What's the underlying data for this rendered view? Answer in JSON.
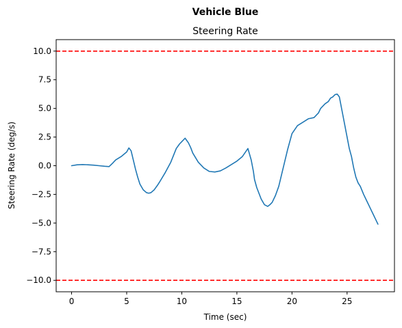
{
  "suptitle": "Vehicle Blue",
  "chart_data": {
    "type": "line",
    "title": "Steering Rate",
    "xlabel": "Time (sec)",
    "ylabel": "Steering Rate (deg/s)",
    "xlim": [
      -1.4,
      29.3
    ],
    "ylim": [
      -11.0,
      11.0
    ],
    "x_ticks": [
      0,
      5,
      10,
      15,
      20,
      25
    ],
    "x_tick_labels": [
      "0",
      "5",
      "10",
      "15",
      "20",
      "25"
    ],
    "y_ticks": [
      10.0,
      7.5,
      5.0,
      2.5,
      0.0,
      -2.5,
      -5.0,
      -7.5,
      -10.0
    ],
    "y_tick_labels": [
      "10.0",
      "7.5",
      "5.0",
      "2.5",
      "0.0",
      "−2.5",
      "−5.0",
      "−7.5",
      "−10.0"
    ],
    "grid": false,
    "series": [
      {
        "color": "#1f77b4",
        "x": [
          0,
          0.5,
          1,
          1.5,
          2,
          2.5,
          3,
          3.4,
          3.7,
          4,
          4.5,
          5,
          5.2,
          5.4,
          5.6,
          5.8,
          6,
          6.2,
          6.5,
          6.8,
          7,
          7.2,
          7.5,
          7.8,
          8,
          8.5,
          9,
          9.5,
          9.8,
          10,
          10.3,
          10.6,
          10.8,
          11,
          11.5,
          12,
          12.5,
          13,
          13.5,
          14,
          14.5,
          15,
          15.5,
          16,
          16.3,
          16.5,
          16.6,
          16.8,
          17,
          17.2,
          17.5,
          17.8,
          18,
          18.2,
          18.5,
          18.8,
          19,
          19.3,
          19.6,
          20,
          20.5,
          21,
          21.5,
          22,
          22.2,
          22.4,
          22.6,
          22.8,
          23,
          23.3,
          23.5,
          23.7,
          23.9,
          24.1,
          24.3,
          24.5,
          24.7,
          25,
          25.2,
          25.4,
          25.6,
          25.8,
          26,
          26.2,
          26.5,
          26.8,
          27,
          27.2,
          27.4,
          27.6,
          27.8
        ],
        "y": [
          0.0,
          0.08,
          0.1,
          0.08,
          0.05,
          0.0,
          -0.05,
          -0.08,
          0.2,
          0.5,
          0.8,
          1.2,
          1.55,
          1.3,
          0.5,
          -0.3,
          -1.0,
          -1.6,
          -2.1,
          -2.35,
          -2.4,
          -2.35,
          -2.1,
          -1.7,
          -1.4,
          -0.6,
          0.3,
          1.5,
          1.9,
          2.1,
          2.4,
          2.0,
          1.6,
          1.1,
          0.3,
          -0.2,
          -0.5,
          -0.55,
          -0.45,
          -0.2,
          0.1,
          0.4,
          0.8,
          1.5,
          0.5,
          -0.5,
          -1.2,
          -1.9,
          -2.4,
          -2.9,
          -3.4,
          -3.55,
          -3.4,
          -3.2,
          -2.6,
          -1.8,
          -1.0,
          0.2,
          1.4,
          2.8,
          3.5,
          3.8,
          4.1,
          4.2,
          4.4,
          4.6,
          5.0,
          5.2,
          5.4,
          5.6,
          5.9,
          6.0,
          6.2,
          6.25,
          6.0,
          5.0,
          4.0,
          2.5,
          1.5,
          0.8,
          -0.2,
          -1.0,
          -1.5,
          -1.8,
          -2.5,
          -3.1,
          -3.5,
          -3.9,
          -4.3,
          -4.7,
          -5.1
        ]
      }
    ],
    "reference_lines": [
      {
        "y": 10.0,
        "color": "#ff0000",
        "style": "dashed"
      },
      {
        "y": -10.0,
        "color": "#ff0000",
        "style": "dashed"
      }
    ]
  }
}
